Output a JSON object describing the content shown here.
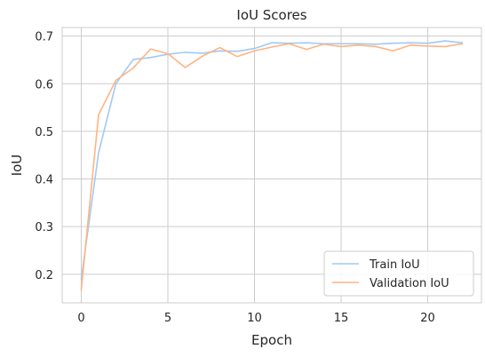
{
  "chart_data": {
    "type": "line",
    "title": "IoU Scores",
    "xlabel": "Epoch",
    "ylabel": "IoU",
    "xlim": [
      -1.1,
      23.1
    ],
    "ylim": [
      0.14,
      0.718
    ],
    "xticks": [
      0,
      5,
      10,
      15,
      20
    ],
    "yticks": [
      0.2,
      0.3,
      0.4,
      0.5,
      0.6,
      0.7
    ],
    "ytick_labels": [
      "0.2",
      "0.3",
      "0.4",
      "0.5",
      "0.6",
      "0.7"
    ],
    "grid": true,
    "legend_position": "lower-right",
    "x": [
      0,
      1,
      2,
      3,
      4,
      5,
      6,
      7,
      8,
      9,
      10,
      11,
      12,
      13,
      14,
      15,
      16,
      17,
      18,
      19,
      20,
      21,
      22
    ],
    "series": [
      {
        "name": "Train IoU",
        "color": "#a1c9f4",
        "values": [
          0.19,
          0.455,
          0.6,
          0.651,
          0.655,
          0.662,
          0.666,
          0.664,
          0.669,
          0.668,
          0.674,
          0.686,
          0.685,
          0.686,
          0.684,
          0.684,
          0.684,
          0.683,
          0.685,
          0.686,
          0.685,
          0.69,
          0.686
        ]
      },
      {
        "name": "Validation IoU",
        "color": "#ffb482",
        "values": [
          0.167,
          0.535,
          0.607,
          0.633,
          0.673,
          0.663,
          0.634,
          0.658,
          0.676,
          0.657,
          0.669,
          0.677,
          0.684,
          0.672,
          0.683,
          0.678,
          0.681,
          0.678,
          0.669,
          0.681,
          0.679,
          0.678,
          0.684
        ]
      }
    ]
  }
}
